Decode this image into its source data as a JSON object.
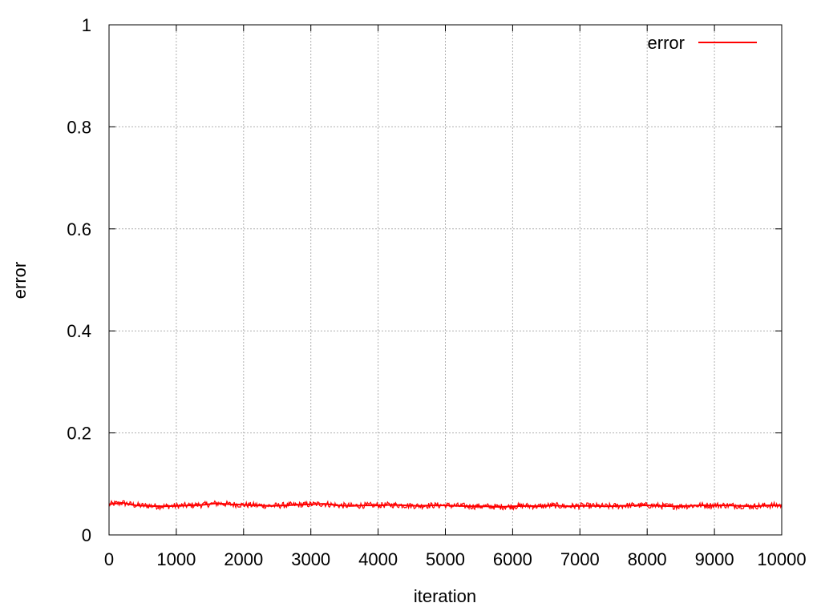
{
  "chart_data": {
    "type": "line",
    "xlabel": "iteration",
    "ylabel": "error",
    "xlim": [
      0,
      10000
    ],
    "ylim": [
      0,
      1
    ],
    "x_ticks": [
      0,
      1000,
      2000,
      3000,
      4000,
      5000,
      6000,
      7000,
      8000,
      9000,
      10000
    ],
    "y_ticks": [
      0,
      0.2,
      0.4,
      0.6,
      0.8,
      1
    ],
    "y_tick_labels": [
      "0",
      "0.2",
      "0.4",
      "0.6",
      "0.8",
      "1"
    ],
    "grid": true,
    "legend_position": "top-right",
    "series": [
      {
        "name": "error",
        "color": "#ff0000",
        "x": [
          0,
          200,
          400,
          600,
          800,
          1000,
          1200,
          1400,
          1600,
          1800,
          2000,
          2200,
          2400,
          2600,
          2800,
          3000,
          3200,
          3400,
          3600,
          3800,
          4000,
          4200,
          4400,
          4600,
          4800,
          5000,
          5200,
          5400,
          5600,
          5800,
          6000,
          6200,
          6400,
          6600,
          6800,
          7000,
          7200,
          7400,
          7600,
          7800,
          8000,
          8200,
          8400,
          8600,
          8800,
          9000,
          9200,
          9400,
          9600,
          9800,
          10000
        ],
        "y": [
          0.06,
          0.063,
          0.058,
          0.057,
          0.056,
          0.057,
          0.058,
          0.059,
          0.062,
          0.06,
          0.059,
          0.058,
          0.057,
          0.058,
          0.059,
          0.06,
          0.061,
          0.058,
          0.057,
          0.058,
          0.058,
          0.059,
          0.058,
          0.057,
          0.058,
          0.058,
          0.057,
          0.056,
          0.056,
          0.055,
          0.056,
          0.057,
          0.056,
          0.058,
          0.056,
          0.057,
          0.057,
          0.056,
          0.057,
          0.058,
          0.058,
          0.057,
          0.056,
          0.057,
          0.058,
          0.058,
          0.058,
          0.057,
          0.056,
          0.058,
          0.058
        ]
      }
    ]
  }
}
